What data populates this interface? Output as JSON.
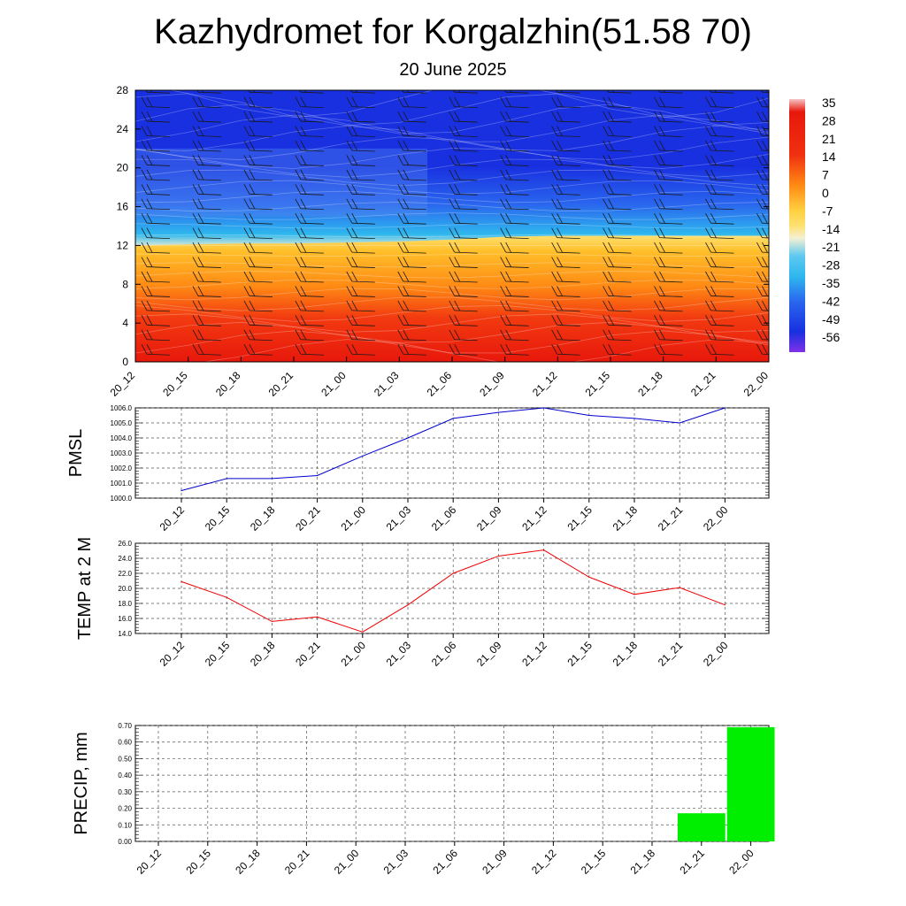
{
  "title": "Kazhydromet for Korgalzhin(51.58 70)",
  "subtitle": "20 June 2025",
  "chart_data": [
    {
      "type": "heatmap",
      "description_of_variable": "temperature cross-section with wind barbs",
      "x_categories": [
        "20_12",
        "20_15",
        "20_18",
        "20_21",
        "21_00",
        "21_03",
        "21_06",
        "21_09",
        "21_12",
        "21_15",
        "21_18",
        "21_21",
        "22_00"
      ],
      "yticks": [
        0,
        4,
        8,
        12,
        16,
        20,
        24,
        28
      ],
      "ylim": [
        0,
        28
      ],
      "freezing_level": [
        12.0,
        12.1,
        12.2,
        12.2,
        12.3,
        12.4,
        12.6,
        12.9,
        13.0,
        13.0,
        13.0,
        13.0,
        13.0
      ],
      "colorbar_labels": [
        "35",
        "28",
        "21",
        "14",
        "7",
        "0",
        "-7",
        "-14",
        "-21",
        "-28",
        "-35",
        "-42",
        "-49",
        "-56"
      ],
      "colorbar_values": [
        35,
        28,
        21,
        14,
        7,
        0,
        -7,
        -14,
        -21,
        -28,
        -35,
        -42,
        -49,
        -56
      ],
      "colors": {
        "hot": "#e8180c",
        "warm": "#ff8a14",
        "yellow": "#ffe070",
        "pale": "#f4f0d4",
        "cyan": "#2eb8ee",
        "blue": "#2a66ee",
        "deep": "#1830e0",
        "purple": "#8030e8"
      }
    },
    {
      "type": "line",
      "ylabel": "PMSL",
      "categories": [
        "20_12",
        "20_15",
        "20_18",
        "20_21",
        "21_00",
        "21_03",
        "21_06",
        "21_09",
        "21_12",
        "21_15",
        "21_18",
        "21_21",
        "22_00"
      ],
      "values": [
        1000.5,
        1001.3,
        1001.3,
        1001.5,
        1002.8,
        1004.0,
        1005.3,
        1005.7,
        1006.0,
        1005.5,
        1005.3,
        1005.0,
        1006.0
      ],
      "ylim": [
        1000.0,
        1006.0
      ],
      "yticks": [
        "1000.0",
        "1001.0",
        "1002.0",
        "1003.0",
        "1004.0",
        "1005.0",
        "1006.0"
      ],
      "line_color": "#0000cc",
      "grid": true
    },
    {
      "type": "line",
      "ylabel": "TEMP at 2 M",
      "categories": [
        "20_12",
        "20_15",
        "20_18",
        "20_21",
        "21_00",
        "21_03",
        "21_06",
        "21_09",
        "21_12",
        "21_15",
        "21_18",
        "21_21",
        "22_00"
      ],
      "values": [
        20.9,
        18.8,
        15.6,
        16.2,
        14.2,
        17.8,
        22.0,
        24.3,
        25.1,
        21.5,
        19.2,
        20.1,
        17.8
      ],
      "ylim": [
        14.0,
        26.0
      ],
      "yticks": [
        "14.0",
        "16.0",
        "18.0",
        "20.0",
        "22.0",
        "24.0",
        "26.0"
      ],
      "line_color": "#ee0000",
      "grid": true
    },
    {
      "type": "bar",
      "ylabel": "PRECIP, mm",
      "categories": [
        "20_12",
        "20_15",
        "20_18",
        "20_21",
        "21_00",
        "21_03",
        "21_06",
        "21_09",
        "21_12",
        "21_15",
        "21_18",
        "21_21",
        "22_00"
      ],
      "values": [
        0,
        0,
        0,
        0,
        0,
        0,
        0,
        0,
        0,
        0,
        0,
        0.17,
        0.69
      ],
      "ylim": [
        0.0,
        0.7
      ],
      "yticks": [
        "0.00",
        "0.10",
        "0.20",
        "0.30",
        "0.40",
        "0.50",
        "0.60",
        "0.70"
      ],
      "bar_color": "#00ee00",
      "grid": true
    }
  ]
}
